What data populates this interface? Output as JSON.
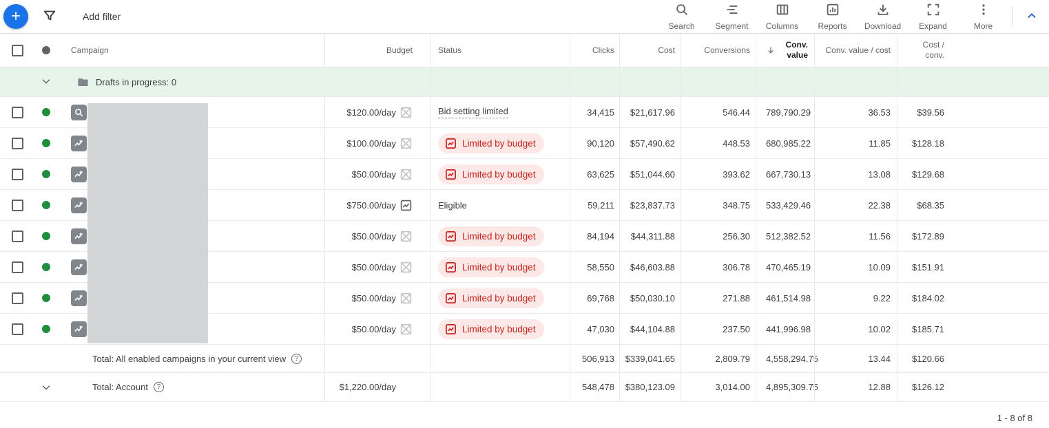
{
  "toolbar": {
    "add_filter_label": "Add filter",
    "actions": [
      {
        "id": "search",
        "icon": "search-icon",
        "label": "Search"
      },
      {
        "id": "segment",
        "icon": "segment-icon",
        "label": "Segment"
      },
      {
        "id": "columns",
        "icon": "columns-icon",
        "label": "Columns"
      },
      {
        "id": "reports",
        "icon": "reports-icon",
        "label": "Reports"
      },
      {
        "id": "download",
        "icon": "download-icon",
        "label": "Download"
      },
      {
        "id": "expand",
        "icon": "expand-icon",
        "label": "Expand"
      },
      {
        "id": "more",
        "icon": "more-icon",
        "label": "More"
      }
    ]
  },
  "header": {
    "campaign": "Campaign",
    "budget": "Budget",
    "status": "Status",
    "clicks": "Clicks",
    "cost": "Cost",
    "conversions": "Conversions",
    "conv_value": "Conv.\nvalue",
    "conv_value_cost": "Conv. value / cost",
    "cost_conv": "Cost /\nconv."
  },
  "drafts": {
    "label": "Drafts in progress: 0"
  },
  "rows": [
    {
      "type_icon": "search-campaign-icon",
      "budget": "$120.00/day",
      "budget_icon": "budget-crossed-icon",
      "status": "Bid setting limited",
      "status_style": "link",
      "clicks": "34,415",
      "cost": "$21,617.96",
      "conversions": "546.44",
      "conv_value": "789,790.29",
      "conv_value_cost": "36.53",
      "cost_conv": "$39.56"
    },
    {
      "type_icon": "performance-max-icon",
      "budget": "$100.00/day",
      "budget_icon": "budget-crossed-icon",
      "status": "Limited by budget",
      "status_style": "pill",
      "clicks": "90,120",
      "cost": "$57,490.62",
      "conversions": "448.53",
      "conv_value": "680,985.22",
      "conv_value_cost": "11.85",
      "cost_conv": "$128.18"
    },
    {
      "type_icon": "performance-max-icon",
      "budget": "$50.00/day",
      "budget_icon": "budget-crossed-icon",
      "status": "Limited by budget",
      "status_style": "pill",
      "clicks": "63,625",
      "cost": "$51,044.60",
      "conversions": "393.62",
      "conv_value": "667,730.13",
      "conv_value_cost": "13.08",
      "cost_conv": "$129.68"
    },
    {
      "type_icon": "performance-max-icon",
      "budget": "$750.00/day",
      "budget_icon": "budget-chart-icon",
      "status": "Eligible",
      "status_style": "plain",
      "clicks": "59,211",
      "cost": "$23,837.73",
      "conversions": "348.75",
      "conv_value": "533,429.46",
      "conv_value_cost": "22.38",
      "cost_conv": "$68.35"
    },
    {
      "type_icon": "performance-max-icon",
      "budget": "$50.00/day",
      "budget_icon": "budget-crossed-icon",
      "status": "Limited by budget",
      "status_style": "pill",
      "clicks": "84,194",
      "cost": "$44,311.88",
      "conversions": "256.30",
      "conv_value": "512,382.52",
      "conv_value_cost": "11.56",
      "cost_conv": "$172.89"
    },
    {
      "type_icon": "performance-max-icon",
      "budget": "$50.00/day",
      "budget_icon": "budget-crossed-icon",
      "status": "Limited by budget",
      "status_style": "pill",
      "clicks": "58,550",
      "cost": "$46,603.88",
      "conversions": "306.78",
      "conv_value": "470,465.19",
      "conv_value_cost": "10.09",
      "cost_conv": "$151.91"
    },
    {
      "type_icon": "performance-max-icon",
      "budget": "$50.00/day",
      "budget_icon": "budget-crossed-icon",
      "status": "Limited by budget",
      "status_style": "pill",
      "clicks": "69,768",
      "cost": "$50,030.10",
      "conversions": "271.88",
      "conv_value": "461,514.98",
      "conv_value_cost": "9.22",
      "cost_conv": "$184.02"
    },
    {
      "type_icon": "performance-max-icon",
      "budget": "$50.00/day",
      "budget_icon": "budget-crossed-icon",
      "status": "Limited by budget",
      "status_style": "pill",
      "clicks": "47,030",
      "cost": "$44,104.88",
      "conversions": "237.50",
      "conv_value": "441,996.98",
      "conv_value_cost": "10.02",
      "cost_conv": "$185.71"
    }
  ],
  "totals": [
    {
      "label": "Total: All enabled campaigns in your current view",
      "has_chevron": false,
      "budget": "",
      "clicks": "506,913",
      "cost": "$339,041.65",
      "conversions": "2,809.79",
      "conv_value": "4,558,294.75",
      "conv_value_cost": "13.44",
      "cost_conv": "$120.66"
    },
    {
      "label": "Total: Account",
      "has_chevron": true,
      "budget": "$1,220.00/day",
      "clicks": "548,478",
      "cost": "$380,123.09",
      "conversions": "3,014.00",
      "conv_value": "4,895,309.75",
      "conv_value_cost": "12.88",
      "cost_conv": "$126.12"
    }
  ],
  "pagination": {
    "label": "1 - 8 of 8"
  },
  "colors": {
    "accent_blue": "#1a73e8",
    "status_green": "#1e8e3e",
    "error_red": "#c5221f",
    "error_bg": "#fce8e6",
    "drafts_bg": "#e6f4ea"
  }
}
